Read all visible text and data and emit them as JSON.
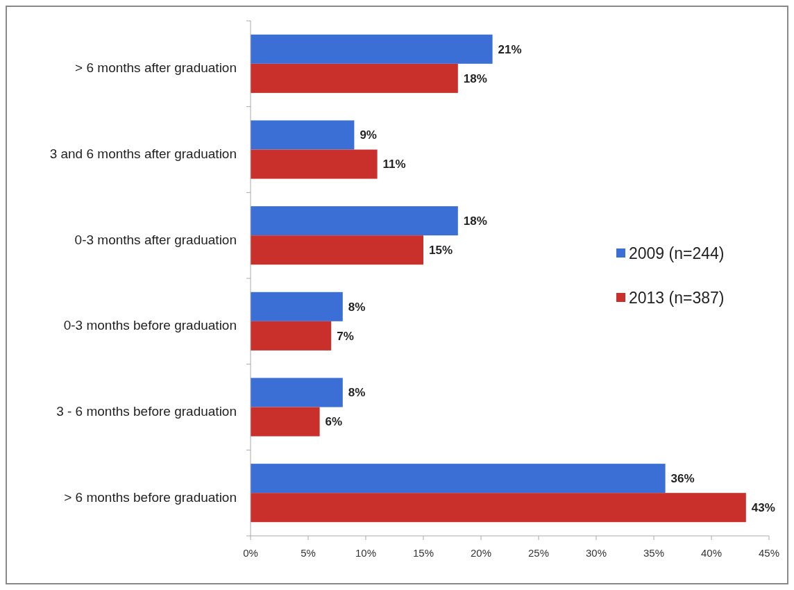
{
  "chart_data": {
    "type": "bar",
    "orientation": "horizontal",
    "categories": [
      "> 6 months after graduation",
      "3 and 6 months after graduation",
      "0-3 months after graduation",
      "0-3 months before graduation",
      "3 - 6 months before graduation",
      "> 6 months before graduation"
    ],
    "series": [
      {
        "name": "2009 (n=244)",
        "color": "#3b6fd6",
        "values": [
          21,
          9,
          18,
          8,
          8,
          36
        ],
        "value_labels": [
          "21%",
          "9%",
          "18%",
          "8%",
          "8%",
          "36%"
        ]
      },
      {
        "name": "2013 (n=387)",
        "color": "#c9302c",
        "values": [
          18,
          11,
          15,
          7,
          6,
          43
        ],
        "value_labels": [
          "18%",
          "11%",
          "15%",
          "7%",
          "6%",
          "43%"
        ]
      }
    ],
    "xlim": [
      0,
      45
    ],
    "xticks": [
      {
        "value": 0,
        "label": "0%"
      },
      {
        "value": 5,
        "label": "5%"
      },
      {
        "value": 10,
        "label": "10%"
      },
      {
        "value": 15,
        "label": "15%"
      },
      {
        "value": 20,
        "label": "20%"
      },
      {
        "value": 25,
        "label": "25%"
      },
      {
        "value": 30,
        "label": "30%"
      },
      {
        "value": 35,
        "label": "35%"
      },
      {
        "value": 40,
        "label": "40%"
      },
      {
        "value": 45,
        "label": "45%"
      }
    ],
    "grid": false,
    "legend": "right"
  }
}
